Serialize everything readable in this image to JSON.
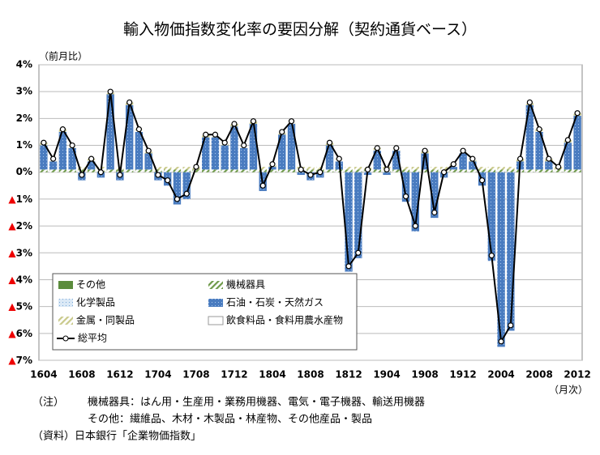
{
  "chart_data": {
    "type": "bar",
    "title": "輸入物価指数変化率の要因分解（契約通貨ベース）",
    "y_label": "（前月比）",
    "x_label": "（月次）",
    "notes": [
      "（注）",
      "機械器具：はん用・生産用・業務用機器、電気・電子機器、輸送用機器",
      "その他：繊維品、木材・木製品・林産物、その他産品・製品",
      "（資料）日本銀行「企業物価指数」"
    ],
    "categories": [
      "1604",
      null,
      null,
      null,
      "1608",
      null,
      null,
      null,
      "1612",
      null,
      null,
      null,
      "1704",
      null,
      null,
      null,
      "1708",
      null,
      null,
      null,
      "1712",
      null,
      null,
      null,
      "1804",
      null,
      null,
      null,
      "1808",
      null,
      null,
      null,
      "1812",
      null,
      null,
      null,
      "1904",
      null,
      null,
      null,
      "1908",
      null,
      null,
      null,
      "1912",
      null,
      null,
      null,
      "2004",
      null,
      null,
      null,
      "2008",
      null,
      null,
      null,
      "2012"
    ],
    "ylim": [
      -7,
      4
    ],
    "yticks": [
      {
        "value": 4,
        "label": "4%"
      },
      {
        "value": 3,
        "label": "3%"
      },
      {
        "value": 2,
        "label": "2%"
      },
      {
        "value": 1,
        "label": "1%"
      },
      {
        "value": 0,
        "label": "0%"
      },
      {
        "value": -1,
        "label": "▲1%"
      },
      {
        "value": -2,
        "label": "▲2%"
      },
      {
        "value": -3,
        "label": "▲3%"
      },
      {
        "value": -4,
        "label": "▲4%"
      },
      {
        "value": -5,
        "label": "▲5%"
      },
      {
        "value": -6,
        "label": "▲6%"
      },
      {
        "value": -7,
        "label": "▲7%"
      }
    ],
    "grid": true,
    "series": [
      {
        "name": "その他",
        "color": "#5b8c3c",
        "values": [
          0,
          0,
          0,
          0,
          0,
          0,
          0,
          0,
          0,
          0,
          0,
          0,
          0,
          0,
          0,
          0,
          0,
          0,
          0,
          0,
          0,
          0,
          0,
          0,
          0,
          0,
          0,
          0,
          0,
          0,
          0,
          0,
          0,
          0,
          0,
          0,
          0,
          0,
          0,
          0,
          0,
          0,
          0,
          0,
          0,
          0,
          0,
          0,
          0,
          0,
          0,
          0,
          0,
          0,
          0,
          0,
          0
        ]
      },
      {
        "name": "機械器具",
        "color": "#6f9a4a",
        "values": [
          0.1,
          0.1,
          0.1,
          0.1,
          0.1,
          0.1,
          0.1,
          0.1,
          0.1,
          0.1,
          0.1,
          0.1,
          0.1,
          0.1,
          0.1,
          0.1,
          0.1,
          0.1,
          0.1,
          0.1,
          0.1,
          0.1,
          0.1,
          0.1,
          0.1,
          0.1,
          0.1,
          0.1,
          0.1,
          0.1,
          0.1,
          0.1,
          0.1,
          0.1,
          0.1,
          0.1,
          0.1,
          0.1,
          0.1,
          0.1,
          0.1,
          0.1,
          0.1,
          0.1,
          0.1,
          0.1,
          0.1,
          0.1,
          0.1,
          0.1,
          0.1,
          0.1,
          0.1,
          0.1,
          0.1,
          0.1,
          0.1
        ]
      },
      {
        "name": "化学製品",
        "color": "#dbe9f6",
        "values": [
          0,
          0,
          0,
          0,
          0,
          0,
          0,
          0,
          0,
          0,
          0,
          0,
          0,
          0,
          0,
          0,
          0,
          0,
          0,
          0,
          0,
          0,
          0,
          0,
          0,
          0,
          0,
          0,
          0,
          0,
          0,
          0,
          0,
          0,
          0,
          0,
          0,
          0,
          0,
          0,
          0,
          0,
          0,
          0,
          0,
          0,
          0,
          0,
          0,
          0,
          0,
          0,
          0,
          0,
          0,
          0,
          0
        ]
      },
      {
        "name": "石油・石炭・天然ガス",
        "color": "#4a7cc0",
        "values": [
          0.9,
          0.3,
          1.4,
          0.8,
          -0.3,
          0.3,
          -0.2,
          2.8,
          -0.3,
          2.4,
          1.4,
          0.6,
          -0.3,
          -0.5,
          -1.2,
          -1.0,
          0.0,
          1.2,
          1.2,
          0.9,
          1.6,
          0.8,
          1.7,
          -0.7,
          0.1,
          1.3,
          1.7,
          -0.1,
          -0.3,
          -0.2,
          0.9,
          0.3,
          -3.7,
          -3.2,
          -0.1,
          0.7,
          -0.1,
          0.7,
          -1.1,
          -2.2,
          0.6,
          -1.7,
          -0.2,
          0.1,
          0.6,
          0.3,
          -0.5,
          -3.3,
          -6.5,
          -5.9,
          0.3,
          2.4,
          1.4,
          0.3,
          0.0,
          1.0,
          2.0
        ]
      },
      {
        "name": "金属・同製品",
        "color": "#c9c98a",
        "values": [
          0.1,
          0.1,
          0.1,
          0.1,
          0.1,
          0.1,
          0.1,
          0.1,
          0.1,
          0.1,
          0.1,
          0.1,
          0.1,
          0.1,
          0.1,
          0.1,
          0.1,
          0.1,
          0.1,
          0.1,
          0.1,
          0.1,
          0.1,
          0.1,
          0.1,
          0.1,
          0.1,
          0.1,
          0.1,
          0.1,
          0.1,
          0.1,
          0.1,
          0.1,
          0.1,
          0.1,
          0.1,
          0.1,
          0.1,
          0.1,
          0.1,
          0.1,
          0.1,
          0.1,
          0.1,
          0.1,
          0.1,
          0.1,
          0.1,
          0.1,
          0.1,
          0.1,
          0.1,
          0.1,
          0.1,
          0.1,
          0.1
        ]
      },
      {
        "name": "飲食料品・食料用農水産物",
        "color": "#ffffff",
        "values": [
          0,
          0,
          0,
          0,
          0,
          0,
          0,
          0,
          0,
          0,
          0,
          0,
          0,
          0,
          0,
          0,
          0,
          0,
          0,
          0,
          0,
          0,
          0,
          0,
          0,
          0,
          0,
          0,
          0,
          0,
          0,
          0,
          0,
          0,
          0,
          0,
          0,
          0,
          0,
          0,
          0,
          0,
          0,
          0,
          0,
          0,
          0,
          0,
          0,
          0,
          0,
          0,
          0,
          0,
          0,
          0,
          0
        ]
      }
    ],
    "line": {
      "name": "総平均",
      "color": "#000000",
      "values": [
        1.1,
        0.5,
        1.6,
        1.0,
        -0.1,
        0.5,
        0.0,
        3.0,
        -0.1,
        2.6,
        1.6,
        0.8,
        -0.1,
        -0.3,
        -1.0,
        -0.8,
        0.2,
        1.4,
        1.4,
        1.1,
        1.8,
        1.0,
        1.9,
        -0.5,
        0.3,
        1.5,
        1.9,
        0.1,
        -0.1,
        0.0,
        1.1,
        0.5,
        -3.5,
        -3.0,
        0.1,
        0.9,
        0.1,
        0.9,
        -0.9,
        -2.0,
        0.8,
        -1.5,
        0.0,
        0.3,
        0.8,
        0.5,
        -0.3,
        -3.1,
        -6.3,
        -5.7,
        0.5,
        2.6,
        1.6,
        0.5,
        0.2,
        1.2,
        2.2
      ]
    }
  }
}
